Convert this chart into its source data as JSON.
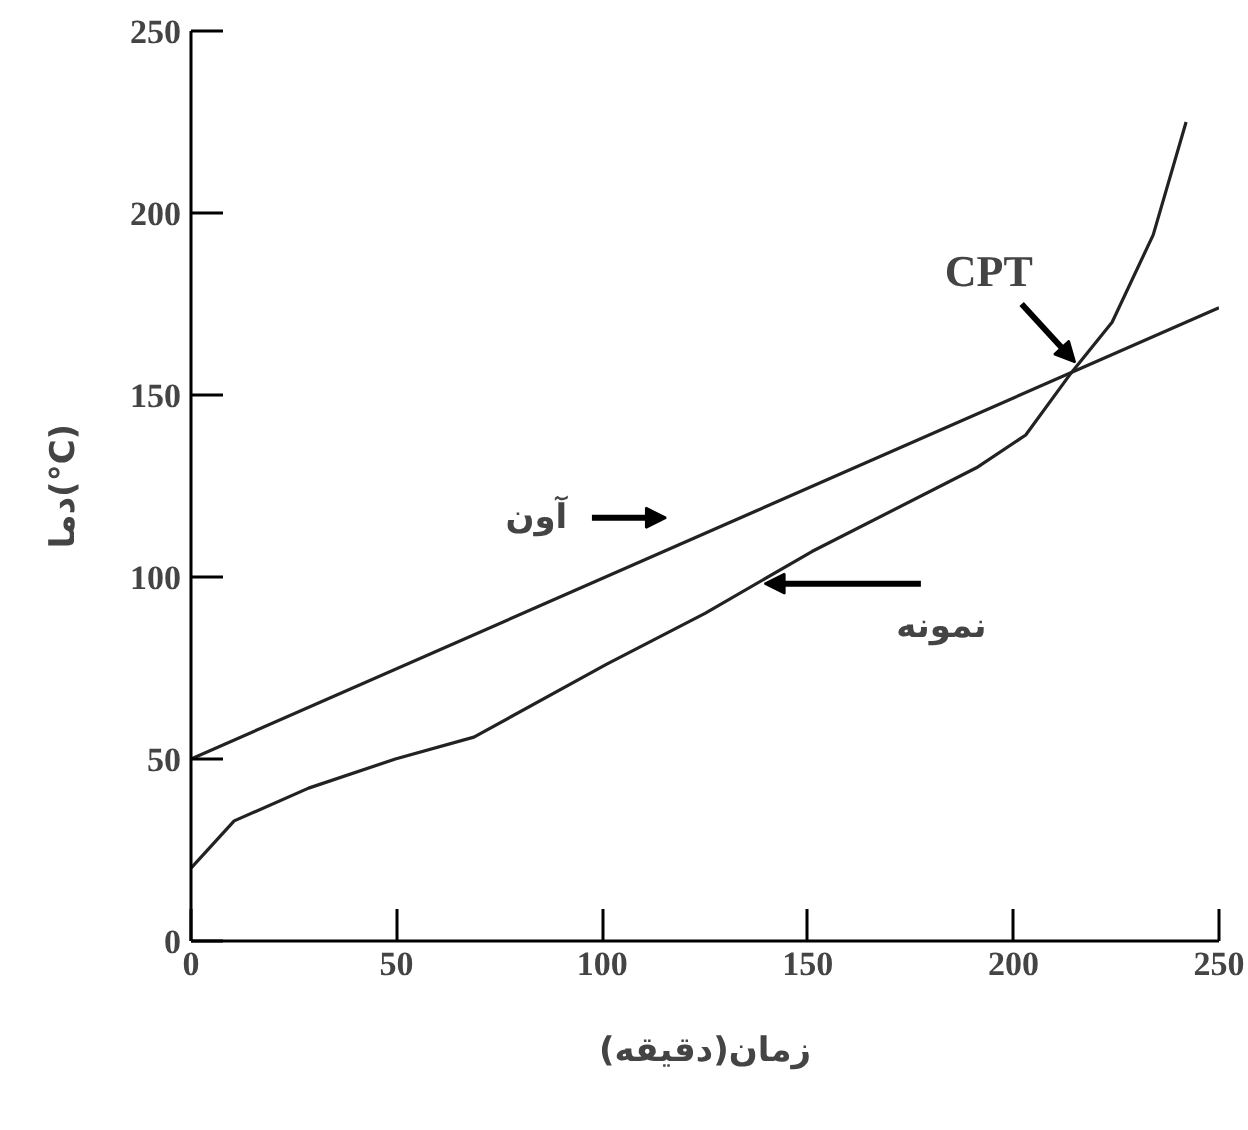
{
  "chart_data": {
    "type": "line",
    "xlabel": "زمان(دقیقه)",
    "ylabel": "دما(°C)",
    "xlim": [
      0,
      250
    ],
    "ylim": [
      0,
      250
    ],
    "xticks": [
      0,
      50,
      100,
      150,
      200,
      250
    ],
    "yticks": [
      0,
      50,
      100,
      150,
      200,
      250
    ],
    "grid": false,
    "marker": "none",
    "line_style": "solid",
    "series": [
      {
        "name": "آون",
        "color": "#222222",
        "x": [
          0,
          250
        ],
        "values": [
          50,
          174
        ]
      },
      {
        "name": "نمونه",
        "color": "#222222",
        "x": [
          0,
          10.5,
          28.6,
          49.7,
          68.8,
          101,
          125,
          151,
          191,
          203,
          214,
          224,
          234,
          242
        ],
        "values": [
          20,
          33,
          42,
          50,
          56,
          76,
          90,
          107,
          130,
          139,
          156,
          170,
          194,
          225
        ]
      }
    ],
    "annotations": [
      {
        "text": "CPT",
        "x": 216,
        "y": 157
      }
    ]
  }
}
